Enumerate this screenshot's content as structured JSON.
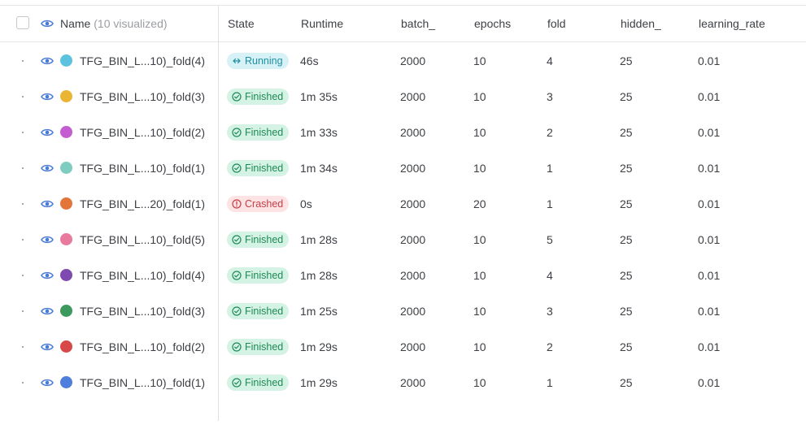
{
  "header": {
    "name_label": "Name",
    "name_count": "(10 visualized)",
    "columns": [
      "State",
      "Runtime",
      "batch_",
      "epochs",
      "fold",
      "hidden_",
      "learning_rate"
    ]
  },
  "rows": [
    {
      "name": "TFG_BIN_L...10)_fold(4)",
      "color": "#5cc3de",
      "state": "Running",
      "runtime": "46s",
      "batch": "2000",
      "epochs": "10",
      "fold": "4",
      "hidden": "25",
      "lr": "0.01"
    },
    {
      "name": "TFG_BIN_L...10)_fold(3)",
      "color": "#ebb534",
      "state": "Finished",
      "runtime": "1m 35s",
      "batch": "2000",
      "epochs": "10",
      "fold": "3",
      "hidden": "25",
      "lr": "0.01"
    },
    {
      "name": "TFG_BIN_L...10)_fold(2)",
      "color": "#c45ed0",
      "state": "Finished",
      "runtime": "1m 33s",
      "batch": "2000",
      "epochs": "10",
      "fold": "2",
      "hidden": "25",
      "lr": "0.01"
    },
    {
      "name": "TFG_BIN_L...10)_fold(1)",
      "color": "#7fcdc0",
      "state": "Finished",
      "runtime": "1m 34s",
      "batch": "2000",
      "epochs": "10",
      "fold": "1",
      "hidden": "25",
      "lr": "0.01"
    },
    {
      "name": "TFG_BIN_L...20)_fold(1)",
      "color": "#e3743a",
      "state": "Crashed",
      "runtime": "0s",
      "batch": "2000",
      "epochs": "20",
      "fold": "1",
      "hidden": "25",
      "lr": "0.01"
    },
    {
      "name": "TFG_BIN_L...10)_fold(5)",
      "color": "#e87a9d",
      "state": "Finished",
      "runtime": "1m 28s",
      "batch": "2000",
      "epochs": "10",
      "fold": "5",
      "hidden": "25",
      "lr": "0.01"
    },
    {
      "name": "TFG_BIN_L...10)_fold(4)",
      "color": "#7e4ab0",
      "state": "Finished",
      "runtime": "1m 28s",
      "batch": "2000",
      "epochs": "10",
      "fold": "4",
      "hidden": "25",
      "lr": "0.01"
    },
    {
      "name": "TFG_BIN_L...10)_fold(3)",
      "color": "#3c9a5f",
      "state": "Finished",
      "runtime": "1m 25s",
      "batch": "2000",
      "epochs": "10",
      "fold": "3",
      "hidden": "25",
      "lr": "0.01"
    },
    {
      "name": "TFG_BIN_L...10)_fold(2)",
      "color": "#d94848",
      "state": "Finished",
      "runtime": "1m 29s",
      "batch": "2000",
      "epochs": "10",
      "fold": "2",
      "hidden": "25",
      "lr": "0.01"
    },
    {
      "name": "TFG_BIN_L...10)_fold(1)",
      "color": "#4f7fdc",
      "state": "Finished",
      "runtime": "1m 29s",
      "batch": "2000",
      "epochs": "10",
      "fold": "1",
      "hidden": "25",
      "lr": "0.01"
    }
  ],
  "icons": {
    "visibility": "eye-icon",
    "finished": "check-circle-icon",
    "running": "running-icon",
    "crashed": "alert-circle-icon"
  },
  "colors": {
    "finished_bg": "#d5f3e4",
    "running_bg": "#d6f2f6",
    "crashed_bg": "#fde3e4",
    "eye": "#4a7cd6"
  }
}
